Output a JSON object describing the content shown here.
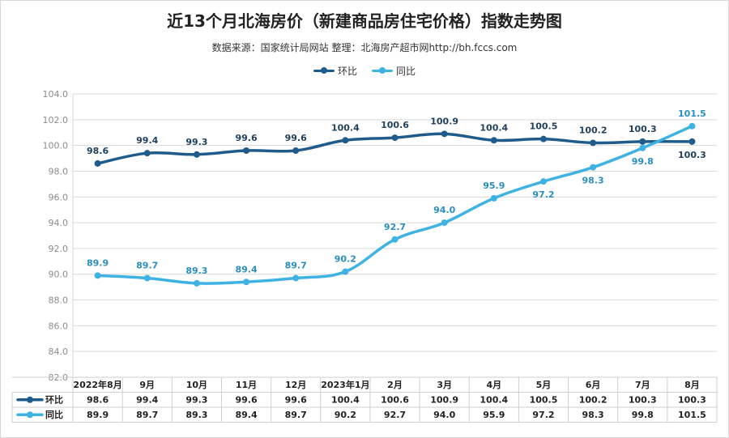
{
  "title": "近13个月北海房价（新建商品房住宅价格）指数走势图",
  "subtitle": "数据来源：国家统计局网站   整理：北海房产超市网http://bh.fccs.com",
  "colors": {
    "huanbi": "#1f5c8b",
    "tongbi": "#3fb2e4",
    "grid": "#d9d9d9"
  },
  "chart_data": {
    "type": "line",
    "categories": [
      "2022年8月",
      "9月",
      "10月",
      "11月",
      "12月",
      "2023年1月",
      "2月",
      "3月",
      "4月",
      "5月",
      "6月",
      "7月",
      "8月"
    ],
    "series": [
      {
        "name": "环比",
        "values": [
          98.6,
          99.4,
          99.3,
          99.6,
          99.6,
          100.4,
          100.6,
          100.9,
          100.4,
          100.5,
          100.2,
          100.3,
          100.3
        ]
      },
      {
        "name": "同比",
        "values": [
          89.9,
          89.7,
          89.3,
          89.4,
          89.7,
          90.2,
          92.7,
          94.0,
          95.9,
          97.2,
          98.3,
          99.8,
          101.5
        ]
      }
    ],
    "ylim": [
      82.0,
      104.0
    ],
    "yticks": [
      "82.0",
      "84.0",
      "86.0",
      "88.0",
      "90.0",
      "92.0",
      "94.0",
      "96.0",
      "98.0",
      "100.0",
      "102.0",
      "104.0"
    ],
    "grid": true,
    "legend": "top-center",
    "data_table": true
  }
}
